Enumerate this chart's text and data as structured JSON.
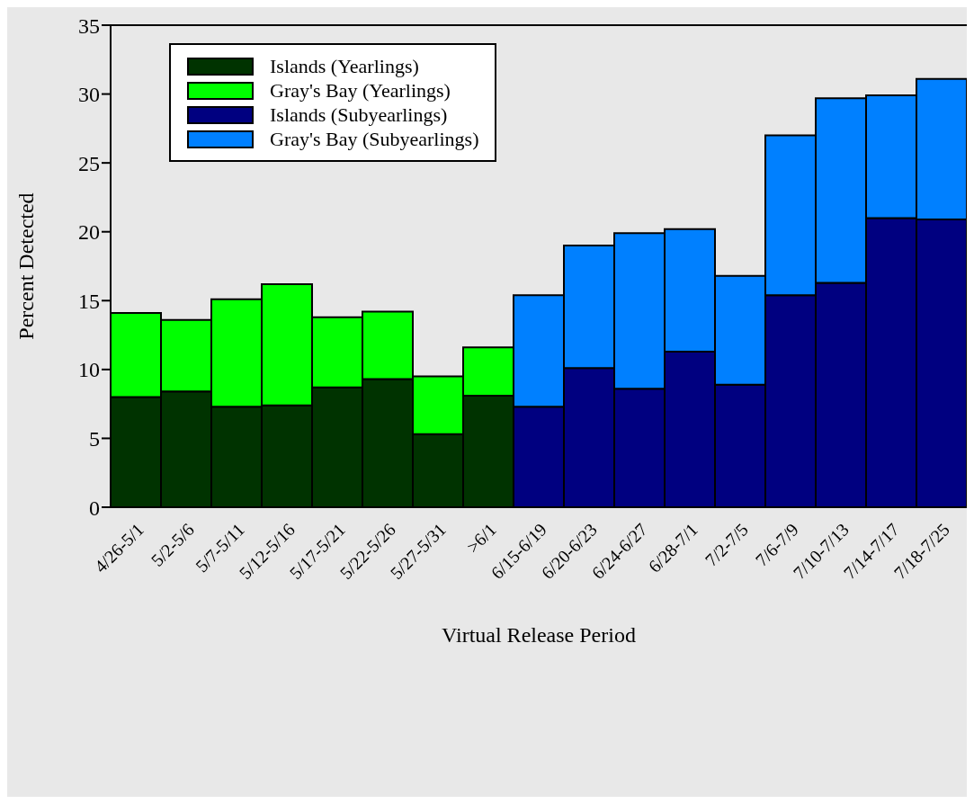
{
  "chart_data": {
    "type": "bar",
    "stacked": true,
    "xlabel": "Virtual Release Period",
    "ylabel": "Percent Detected",
    "categories": [
      "4/26-5/1",
      "5/2-5/6",
      "5/7-5/11",
      "5/12-5/16",
      "5/17-5/21",
      "5/22-5/26",
      "5/27-5/31",
      ">6/1",
      "6/15-6/19",
      "6/20-6/23",
      "6/24-6/27",
      "6/28-7/1",
      "7/2-7/5",
      "7/6-7/9",
      "7/10-7/13",
      "7/14-7/17",
      "7/18-7/25"
    ],
    "series": [
      {
        "name": "Islands (Yearlings)",
        "color": "#003300",
        "values": [
          8.0,
          8.4,
          7.3,
          7.4,
          8.7,
          9.3,
          5.3,
          8.1,
          null,
          null,
          null,
          null,
          null,
          null,
          null,
          null,
          null
        ]
      },
      {
        "name": "Gray's Bay  (Yearlings)",
        "color": "#00ff00",
        "values": [
          6.1,
          5.2,
          7.8,
          8.8,
          5.1,
          4.9,
          4.2,
          3.5,
          null,
          null,
          null,
          null,
          null,
          null,
          null,
          null,
          null
        ]
      },
      {
        "name": "Islands (Subyearlings)",
        "color": "#000080",
        "values": [
          null,
          null,
          null,
          null,
          null,
          null,
          null,
          null,
          7.3,
          10.1,
          8.6,
          11.3,
          8.9,
          15.4,
          16.3,
          21.0,
          20.9
        ]
      },
      {
        "name": "Gray's Bay (Subyearlings)",
        "color": "#0080ff",
        "values": [
          null,
          null,
          null,
          null,
          null,
          null,
          null,
          null,
          8.1,
          8.9,
          11.3,
          8.9,
          7.9,
          11.6,
          13.4,
          8.9,
          10.2
        ]
      }
    ],
    "ylim": [
      0,
      35
    ],
    "yticks": [
      0,
      5,
      10,
      15,
      20,
      25,
      30,
      35
    ],
    "grid": false,
    "legend": "top left"
  }
}
